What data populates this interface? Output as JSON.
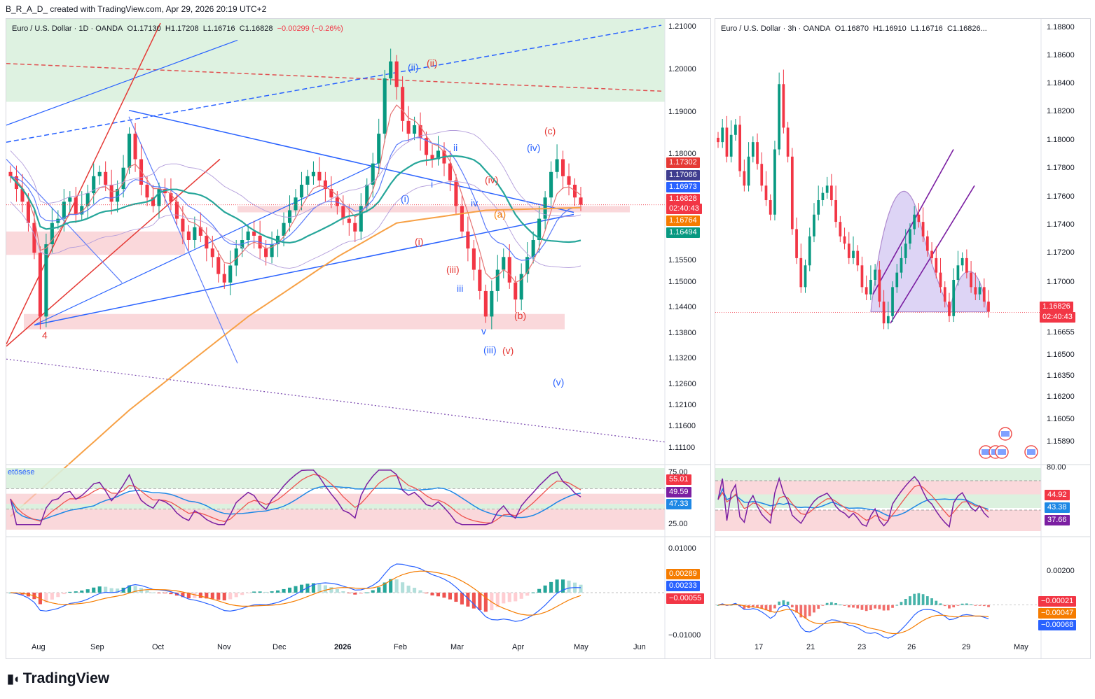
{
  "header": {
    "text": "B_R_A_D_ created with TradingView.com, Apr 29, 2026 20:19 UTC+2"
  },
  "brand": {
    "logo_text": "TradingView"
  },
  "left_chart": {
    "symbol": "Euro / U.S. Dollar · 1D · OANDA",
    "ohlc": {
      "o": "O1.17130",
      "h": "H1.17208",
      "l": "L1.16716",
      "c": "C1.16828",
      "chg": "−0.00299 (−0.26%)"
    },
    "price_ticks": [
      "1.21000",
      "1.20000",
      "1.19000",
      "1.18000",
      "1.15500",
      "1.15000",
      "1.14400",
      "1.13800",
      "1.13200",
      "1.12600",
      "1.12100",
      "1.11600",
      "1.11100"
    ],
    "price_tags": [
      {
        "text": "1.17302",
        "color": "#e53935"
      },
      {
        "text": "1.17066",
        "color": "#3f3d8f"
      },
      {
        "text": "1.16973",
        "color": "#2962ff"
      },
      {
        "text": "1.16828",
        "color": "#f23645"
      },
      {
        "text": "02:40:43",
        "color": "#f23645"
      },
      {
        "text": "1.16764",
        "color": "#f57c00"
      },
      {
        "text": "1.16494",
        "color": "#089981"
      }
    ],
    "waves": [
      {
        "t": "(ii)",
        "c": "#2962ff"
      },
      {
        "t": "(ii)",
        "c": "#e53935"
      },
      {
        "t": "(c)",
        "c": "#e53935"
      },
      {
        "t": "(iv)",
        "c": "#2962ff"
      },
      {
        "t": "ii",
        "c": "#2962ff"
      },
      {
        "t": "(iv)",
        "c": "#e53935"
      },
      {
        "t": "(i)",
        "c": "#2962ff"
      },
      {
        "t": "iv",
        "c": "#2962ff"
      },
      {
        "t": "(a)",
        "c": "#f57c00"
      },
      {
        "t": "(i)",
        "c": "#e53935"
      },
      {
        "t": "(iii)",
        "c": "#e53935"
      },
      {
        "t": "iii",
        "c": "#2962ff"
      },
      {
        "t": "(b)",
        "c": "#e53935"
      },
      {
        "t": "v",
        "c": "#2962ff"
      },
      {
        "t": "(iii)",
        "c": "#2962ff"
      },
      {
        "t": "(v)",
        "c": "#e53935"
      },
      {
        "t": "(v)",
        "c": "#2962ff"
      },
      {
        "t": "4",
        "c": "#e53935"
      },
      {
        "t": "i",
        "c": "#2962ff"
      }
    ],
    "rsi": {
      "label": "etősése",
      "ticks": [
        "75.00",
        "25.00"
      ],
      "tags": [
        {
          "text": "55.01",
          "color": "#f23645"
        },
        {
          "text": "49.59",
          "color": "#7b1fa2"
        },
        {
          "text": "47.33",
          "color": "#1e88e5"
        }
      ]
    },
    "macd": {
      "ticks": [
        "0.01000",
        "−0.01000"
      ],
      "tags": [
        {
          "text": "0.00289",
          "color": "#f57c00"
        },
        {
          "text": "0.00233",
          "color": "#2962ff"
        },
        {
          "text": "−0.00055",
          "color": "#f23645"
        }
      ]
    },
    "x_ticks": [
      "Aug",
      "Sep",
      "Oct",
      "Nov",
      "Dec",
      "2026",
      "Feb",
      "Mar",
      "Apr",
      "May",
      "Jun"
    ]
  },
  "right_chart": {
    "symbol": "Euro / U.S. Dollar · 3h · OANDA",
    "ohlc": {
      "o": "O1.16870",
      "h": "H1.16910",
      "l": "L1.16716",
      "c": "C1.16826..."
    },
    "price_ticks": [
      "1.18800",
      "1.18600",
      "1.18400",
      "1.18200",
      "1.18000",
      "1.17800",
      "1.17600",
      "1.17400",
      "1.17200",
      "1.17000",
      "1.16655",
      "1.16500",
      "1.16350",
      "1.16200",
      "1.16050",
      "1.15890"
    ],
    "price_tags": [
      {
        "text": "1.16826",
        "color": "#f23645"
      },
      {
        "text": "02:40:43",
        "color": "#f23645"
      }
    ],
    "rsi": {
      "ticks": [
        "80.00"
      ],
      "tags": [
        {
          "text": "44.92",
          "color": "#f23645"
        },
        {
          "text": "43.38",
          "color": "#1e88e5"
        },
        {
          "text": "37.66",
          "color": "#7b1fa2"
        }
      ]
    },
    "macd": {
      "ticks": [
        "0.00200"
      ],
      "tags": [
        {
          "text": "−0.00021",
          "color": "#f23645"
        },
        {
          "text": "−0.00047",
          "color": "#f57c00"
        },
        {
          "text": "−0.00068",
          "color": "#2962ff"
        }
      ]
    },
    "x_ticks": [
      "17",
      "21",
      "23",
      "26",
      "29",
      "May"
    ]
  },
  "chart_data": [
    {
      "type": "candlestick",
      "title": "Euro / U.S. Dollar · 1D · OANDA",
      "ylim": [
        1.108,
        1.212
      ],
      "x_range": [
        "Jul 2025",
        "Jun 2026"
      ],
      "closes": [
        1.175,
        1.172,
        1.169,
        1.164,
        1.157,
        1.142,
        1.159,
        1.164,
        1.165,
        1.169,
        1.17,
        1.166,
        1.168,
        1.171,
        1.175,
        1.176,
        1.173,
        1.169,
        1.172,
        1.177,
        1.185,
        1.179,
        1.173,
        1.17,
        1.168,
        1.172,
        1.171,
        1.169,
        1.165,
        1.162,
        1.16,
        1.163,
        1.161,
        1.158,
        1.156,
        1.152,
        1.15,
        1.154,
        1.158,
        1.16,
        1.162,
        1.161,
        1.158,
        1.156,
        1.159,
        1.161,
        1.164,
        1.167,
        1.17,
        1.173,
        1.175,
        1.176,
        1.174,
        1.172,
        1.17,
        1.168,
        1.165,
        1.164,
        1.162,
        1.168,
        1.173,
        1.178,
        1.185,
        1.198,
        1.202,
        1.196,
        1.188,
        1.185,
        1.187,
        1.184,
        1.18,
        1.179,
        1.181,
        1.178,
        1.174,
        1.168,
        1.162,
        1.158,
        1.153,
        1.148,
        1.142,
        1.148,
        1.153,
        1.156,
        1.15,
        1.146,
        1.152,
        1.156,
        1.16,
        1.165,
        1.17,
        1.176,
        1.179,
        1.175,
        1.173,
        1.17,
        1.1683
      ],
      "series": [
        {
          "name": "RSI",
          "last": 49.59
        },
        {
          "name": "RSI MA",
          "last": 47.33
        },
        {
          "name": "RSI signal",
          "last": 55.01
        },
        {
          "name": "MACD",
          "last": 0.00233
        },
        {
          "name": "Signal",
          "last": 0.00289
        },
        {
          "name": "Histogram",
          "last": -0.00055
        }
      ]
    },
    {
      "type": "candlestick",
      "title": "Euro / U.S. Dollar · 3h · OANDA",
      "ylim": [
        1.158,
        1.1885
      ],
      "x_range": [
        "Apr 14",
        "May 1"
      ],
      "closes": [
        1.18,
        1.181,
        1.179,
        1.1805,
        1.1812,
        1.178,
        1.177,
        1.179,
        1.18,
        1.1785,
        1.177,
        1.176,
        1.175,
        1.1795,
        1.184,
        1.181,
        1.179,
        1.174,
        1.172,
        1.17,
        1.1715,
        1.1735,
        1.175,
        1.176,
        1.1765,
        1.177,
        1.176,
        1.1745,
        1.1735,
        1.173,
        1.172,
        1.1725,
        1.1715,
        1.17,
        1.1695,
        1.1705,
        1.1712,
        1.169,
        1.1675,
        1.168,
        1.17,
        1.171,
        1.172,
        1.173,
        1.174,
        1.175,
        1.1745,
        1.1735,
        1.1725,
        1.172,
        1.171,
        1.17,
        1.169,
        1.168,
        1.1705,
        1.1715,
        1.172,
        1.171,
        1.17,
        1.1695,
        1.17,
        1.169,
        1.1683
      ],
      "series": [
        {
          "name": "RSI",
          "last": 37.66
        },
        {
          "name": "RSI MA",
          "last": 43.38
        },
        {
          "name": "RSI signal",
          "last": 44.92
        },
        {
          "name": "MACD",
          "last": -0.00068
        },
        {
          "name": "Signal",
          "last": -0.00047
        },
        {
          "name": "Histogram",
          "last": -0.00021
        }
      ]
    }
  ]
}
